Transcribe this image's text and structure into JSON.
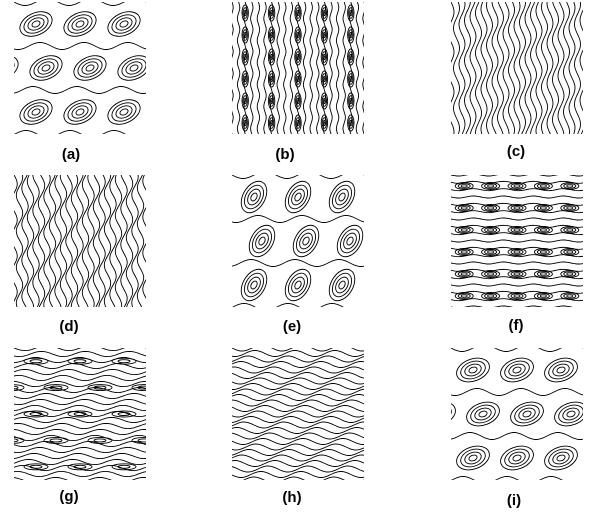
{
  "figure": {
    "panels": [
      {
        "id": "a",
        "caption": "(a)",
        "pattern": "tilted-ellipse-cells"
      },
      {
        "id": "b",
        "caption": "(b)",
        "pattern": "vertical-lines-with-elliptic-cells"
      },
      {
        "id": "c",
        "caption": "(c)",
        "pattern": "vertical-wavy-lines"
      },
      {
        "id": "d",
        "caption": "(d)",
        "pattern": "vertical-wavy-lines"
      },
      {
        "id": "e",
        "caption": "(e)",
        "pattern": "tilted-ellipse-cells"
      },
      {
        "id": "f",
        "caption": "(f)",
        "pattern": "horizontal-lines-with-elliptic-cells"
      },
      {
        "id": "g",
        "caption": "(g)",
        "pattern": "horizontal-wavy-lines-with-cells"
      },
      {
        "id": "h",
        "caption": "(h)",
        "pattern": "horizontal-wavy-lines"
      },
      {
        "id": "i",
        "caption": "(i)",
        "pattern": "tilted-ellipse-cells"
      }
    ],
    "line_color": "#000000",
    "background": "#ffffff"
  }
}
